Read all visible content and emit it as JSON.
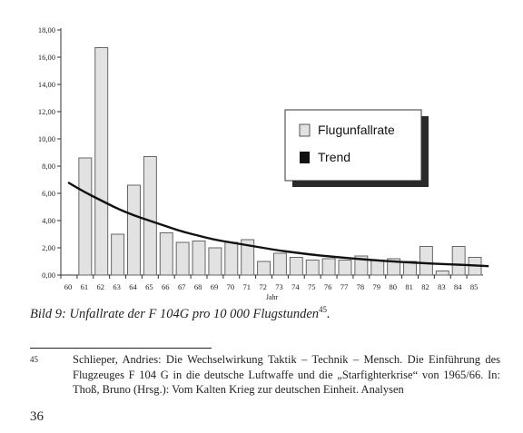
{
  "chart_data": {
    "type": "bar",
    "categories": [
      "60",
      "61",
      "62",
      "63",
      "64",
      "65",
      "66",
      "67",
      "68",
      "69",
      "70",
      "71",
      "72",
      "73",
      "74",
      "75",
      "76",
      "77",
      "78",
      "79",
      "80",
      "81",
      "82",
      "83",
      "84",
      "85"
    ],
    "series": [
      {
        "name": "Flugunfallrate",
        "values": [
          0,
          8.6,
          16.7,
          3.0,
          6.6,
          8.7,
          3.1,
          2.4,
          2.5,
          2.0,
          2.4,
          2.6,
          1.0,
          1.6,
          1.3,
          1.1,
          1.2,
          1.1,
          1.4,
          1.1,
          1.2,
          1.0,
          2.1,
          0.3,
          2.1,
          1.3
        ]
      },
      {
        "name": "Trend",
        "type": "line",
        "values": [
          6.8,
          6.1,
          5.5,
          4.9,
          4.4,
          4.0,
          3.6,
          3.2,
          2.9,
          2.6,
          2.4,
          2.2,
          2.0,
          1.8,
          1.65,
          1.5,
          1.38,
          1.27,
          1.17,
          1.08,
          1.0,
          0.93,
          0.87,
          0.81,
          0.76,
          0.72
        ]
      }
    ],
    "ylim": [
      0,
      18
    ],
    "yticks": [
      "0,00",
      "2,00",
      "4,00",
      "6,00",
      "8,00",
      "10,00",
      "12,00",
      "14,00",
      "16,00",
      "18,00"
    ],
    "xlabel": "Jahr",
    "ylabel": "",
    "legend_position": "right",
    "grid": false
  },
  "legend": {
    "bar_label": "Flugunfallrate",
    "line_label": "Trend"
  },
  "caption": {
    "text": "Bild 9:  Unfallrate der F 104G pro 10 000 Flugstunden",
    "ref": "45"
  },
  "footnote": {
    "number": "45",
    "text": "Schlieper, Andries: Die Wechselwirkung Taktik – Technik – Mensch. Die Einführung des Flugzeuges F 104 G in die deutsche Luftwaffe und die „Starfighterkrise“ von 1965/66. In: Thoß, Bruno (Hrsg.): Vom Kalten Krieg zur deutschen Einheit. Analysen"
  },
  "page_number": "36",
  "colors": {
    "bar_fill": "#e2e2e2",
    "bar_stroke": "#666666",
    "trend_line": "#111111",
    "axis": "#333333"
  }
}
